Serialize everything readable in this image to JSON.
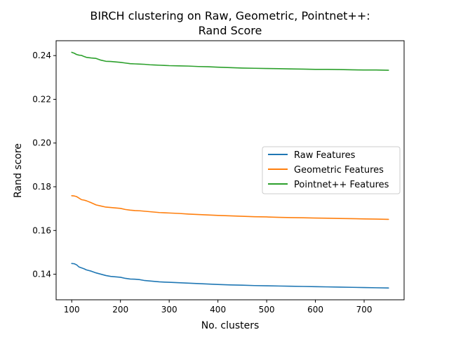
{
  "chart_data": {
    "type": "line",
    "title_lines": [
      "BIRCH clustering on Raw, Geometric, Pointnet++:",
      "Rand Score"
    ],
    "xlabel": "No. clusters",
    "ylabel": "Rand score",
    "xlim": [
      68,
      782
    ],
    "ylim": [
      0.1283,
      0.2468
    ],
    "xticks": [
      100,
      200,
      300,
      400,
      500,
      600,
      700
    ],
    "yticks": [
      0.14,
      0.16,
      0.18,
      0.2,
      0.22,
      0.24
    ],
    "ytick_labels": [
      "0.14",
      "0.16",
      "0.18",
      "0.20",
      "0.22",
      "0.24"
    ],
    "grid": false,
    "legend_position": "center-right",
    "series": [
      {
        "name": "Raw Features",
        "color": "#1f77b4",
        "x": [
          100,
          105,
          110,
          115,
          120,
          125,
          130,
          140,
          150,
          160,
          170,
          180,
          190,
          200,
          210,
          220,
          230,
          240,
          250,
          260,
          270,
          280,
          290,
          300,
          320,
          340,
          360,
          380,
          400,
          425,
          450,
          475,
          500,
          525,
          550,
          575,
          600,
          625,
          650,
          675,
          700,
          725,
          750
        ],
        "y": [
          0.1449,
          0.1448,
          0.1443,
          0.1433,
          0.1429,
          0.1425,
          0.142,
          0.1414,
          0.1406,
          0.14,
          0.1394,
          0.139,
          0.1388,
          0.1386,
          0.1381,
          0.1378,
          0.1377,
          0.1375,
          0.1371,
          0.1369,
          0.1367,
          0.1365,
          0.1364,
          0.1363,
          0.1361,
          0.1359,
          0.1357,
          0.1355,
          0.1353,
          0.1351,
          0.135,
          0.1348,
          0.1347,
          0.1346,
          0.1345,
          0.1344,
          0.1343,
          0.1342,
          0.1341,
          0.134,
          0.1339,
          0.1338,
          0.1337
        ]
      },
      {
        "name": "Geometric Features",
        "color": "#ff7f0e",
        "x": [
          100,
          105,
          110,
          115,
          120,
          125,
          130,
          140,
          150,
          160,
          170,
          180,
          190,
          200,
          210,
          220,
          230,
          240,
          250,
          260,
          270,
          280,
          290,
          300,
          320,
          340,
          360,
          380,
          400,
          425,
          450,
          475,
          500,
          525,
          550,
          575,
          600,
          625,
          650,
          675,
          700,
          725,
          750
        ],
        "y": [
          0.1759,
          0.1758,
          0.1755,
          0.1748,
          0.1741,
          0.1739,
          0.1736,
          0.1727,
          0.1717,
          0.1712,
          0.1707,
          0.1705,
          0.1703,
          0.1701,
          0.1696,
          0.1693,
          0.1691,
          0.169,
          0.1688,
          0.1686,
          0.1684,
          0.1682,
          0.1681,
          0.168,
          0.1678,
          0.1675,
          0.1673,
          0.1671,
          0.1669,
          0.1667,
          0.1665,
          0.1663,
          0.1662,
          0.166,
          0.1659,
          0.1658,
          0.1657,
          0.1656,
          0.1655,
          0.1654,
          0.1653,
          0.1652,
          0.1651
        ]
      },
      {
        "name": "Pointnet++ Features",
        "color": "#2ca02c",
        "x": [
          100,
          105,
          110,
          115,
          120,
          125,
          130,
          140,
          150,
          160,
          170,
          180,
          190,
          200,
          210,
          220,
          230,
          240,
          250,
          260,
          270,
          280,
          290,
          300,
          320,
          340,
          360,
          380,
          400,
          425,
          450,
          475,
          500,
          525,
          550,
          575,
          600,
          625,
          650,
          675,
          700,
          725,
          750
        ],
        "y": [
          0.2415,
          0.2411,
          0.2405,
          0.2402,
          0.2401,
          0.2396,
          0.2392,
          0.2389,
          0.2387,
          0.2379,
          0.2374,
          0.2373,
          0.2371,
          0.2369,
          0.2366,
          0.2363,
          0.2362,
          0.2361,
          0.236,
          0.2358,
          0.2357,
          0.2356,
          0.2355,
          0.2354,
          0.2353,
          0.2352,
          0.235,
          0.2349,
          0.2347,
          0.2345,
          0.2343,
          0.2342,
          0.2341,
          0.234,
          0.2339,
          0.2338,
          0.2337,
          0.2337,
          0.2336,
          0.2335,
          0.2334,
          0.2334,
          0.2333
        ]
      }
    ]
  }
}
